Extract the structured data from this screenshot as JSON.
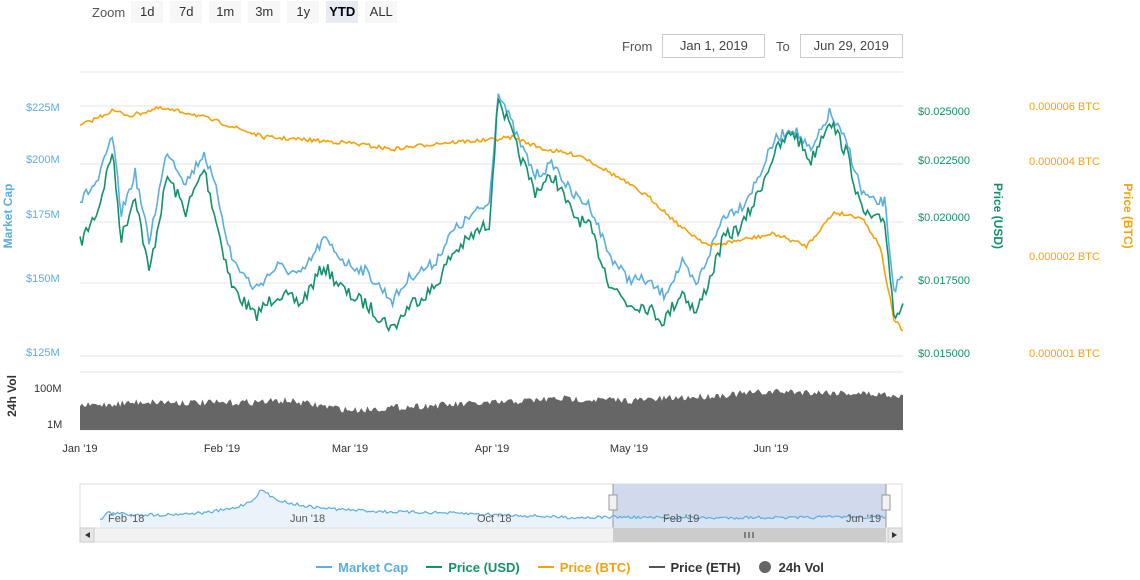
{
  "zoom": {
    "label": "Zoom",
    "buttons": [
      "1d",
      "7d",
      "1m",
      "3m",
      "1y",
      "YTD",
      "ALL"
    ],
    "active": "YTD"
  },
  "range": {
    "from_label": "From",
    "from_value": "Jan 1, 2019",
    "to_label": "To",
    "to_value": "Jun 29, 2019"
  },
  "colors": {
    "market_cap": "#5aaee0",
    "price_usd": "#11926c",
    "price_btc": "#f5a20a",
    "price_eth": "#555555",
    "volume": "#666666",
    "navigator_fill": "#c5d0e8"
  },
  "chart_data": {
    "type": "line",
    "x_range": [
      "2019-01-01",
      "2019-06-29"
    ],
    "x_ticks": [
      "Jan '19",
      "Feb '19",
      "Mar '19",
      "Apr '19",
      "May '19",
      "Jun '19"
    ],
    "axes": {
      "market_cap": {
        "label": "Market Cap",
        "ticks": [
          "$225M",
          "$200M",
          "$175M",
          "$150M",
          "$125M"
        ],
        "range": [
          125,
          225
        ],
        "unit": "$M"
      },
      "price_usd": {
        "label": "Price (USD)",
        "ticks": [
          "$0.025000",
          "$0.022500",
          "$0.020000",
          "$0.017500",
          "$0.015000"
        ],
        "range": [
          0.015,
          0.025
        ]
      },
      "price_btc": {
        "label": "Price (BTC)",
        "ticks": [
          "0.000006 BTC",
          "0.000004 BTC",
          "0.000002 BTC",
          "0.000001 BTC"
        ],
        "values": [
          6e-06,
          4e-06,
          2e-06,
          1e-06
        ],
        "scale": "log"
      },
      "volume": {
        "label": "24h Vol",
        "ticks": [
          "100M",
          "1M"
        ],
        "scale": "log"
      }
    },
    "series": [
      {
        "name": "Price (USD)",
        "x": [
          "2019-01-01",
          "2019-01-05",
          "2019-01-08",
          "2019-01-10",
          "2019-01-13",
          "2019-01-16",
          "2019-01-20",
          "2019-01-24",
          "2019-01-28",
          "2019-01-31",
          "2019-02-03",
          "2019-02-08",
          "2019-02-13",
          "2019-02-18",
          "2019-02-23",
          "2019-02-28",
          "2019-03-04",
          "2019-03-10",
          "2019-03-14",
          "2019-03-19",
          "2019-03-23",
          "2019-03-28",
          "2019-03-31",
          "2019-04-02",
          "2019-04-06",
          "2019-04-10",
          "2019-04-14",
          "2019-04-18",
          "2019-04-22",
          "2019-04-26",
          "2019-04-30",
          "2019-05-04",
          "2019-05-08",
          "2019-05-12",
          "2019-05-15",
          "2019-05-18",
          "2019-05-21",
          "2019-05-25",
          "2019-05-28",
          "2019-06-01",
          "2019-06-05",
          "2019-06-09",
          "2019-06-13",
          "2019-06-17",
          "2019-06-20",
          "2019-06-23",
          "2019-06-25",
          "2019-06-27",
          "2019-06-29"
        ],
        "values": [
          0.0195,
          0.0209,
          0.0232,
          0.0197,
          0.0215,
          0.0183,
          0.0222,
          0.0208,
          0.0225,
          0.0201,
          0.0178,
          0.0166,
          0.0175,
          0.0171,
          0.0186,
          0.0175,
          0.0171,
          0.0161,
          0.0171,
          0.0177,
          0.0191,
          0.0199,
          0.0203,
          0.0254,
          0.0233,
          0.0216,
          0.0222,
          0.0207,
          0.0201,
          0.018,
          0.0171,
          0.017,
          0.0164,
          0.0176,
          0.0167,
          0.0181,
          0.0197,
          0.0202,
          0.0213,
          0.0231,
          0.024,
          0.0228,
          0.0245,
          0.023,
          0.0208,
          0.0204,
          0.0205,
          0.0167,
          0.0171
        ]
      },
      {
        "name": "Market Cap",
        "x": [
          "2019-01-01",
          "2019-01-05",
          "2019-01-08",
          "2019-01-10",
          "2019-01-13",
          "2019-01-16",
          "2019-01-20",
          "2019-01-24",
          "2019-01-28",
          "2019-01-31",
          "2019-02-03",
          "2019-02-08",
          "2019-02-13",
          "2019-02-18",
          "2019-02-23",
          "2019-02-28",
          "2019-03-04",
          "2019-03-10",
          "2019-03-14",
          "2019-03-19",
          "2019-03-23",
          "2019-03-28",
          "2019-03-31",
          "2019-04-02",
          "2019-04-06",
          "2019-04-10",
          "2019-04-14",
          "2019-04-18",
          "2019-04-22",
          "2019-04-26",
          "2019-04-30",
          "2019-05-04",
          "2019-05-08",
          "2019-05-12",
          "2019-05-15",
          "2019-05-18",
          "2019-05-21",
          "2019-05-25",
          "2019-05-28",
          "2019-06-01",
          "2019-06-05",
          "2019-06-09",
          "2019-06-13",
          "2019-06-17",
          "2019-06-20",
          "2019-06-23",
          "2019-06-25",
          "2019-06-27",
          "2019-06-29"
        ],
        "values": [
          184,
          193,
          212,
          179,
          196,
          167,
          206,
          192,
          205,
          186,
          160,
          148,
          157,
          153,
          168,
          158,
          155,
          144,
          153,
          158,
          171,
          179,
          183,
          232,
          212,
          195,
          200,
          187,
          182,
          162,
          152,
          151,
          146,
          158,
          149,
          163,
          178,
          182,
          192,
          210,
          216,
          205,
          222,
          208,
          188,
          183,
          184,
          148,
          152
        ]
      },
      {
        "name": "Price (BTC)",
        "x": [
          "2019-01-01",
          "2019-01-08",
          "2019-01-12",
          "2019-01-18",
          "2019-01-25",
          "2019-02-01",
          "2019-02-10",
          "2019-02-20",
          "2019-03-01",
          "2019-03-10",
          "2019-03-20",
          "2019-03-31",
          "2019-04-05",
          "2019-04-12",
          "2019-04-20",
          "2019-04-28",
          "2019-05-05",
          "2019-05-12",
          "2019-05-18",
          "2019-05-25",
          "2019-06-01",
          "2019-06-08",
          "2019-06-14",
          "2019-06-20",
          "2019-06-24",
          "2019-06-27",
          "2019-06-29"
        ],
        "values": [
          5.2e-06,
          5.8e-06,
          5.6e-06,
          5.9e-06,
          5.7e-06,
          5.3e-06,
          4.8e-06,
          4.7e-06,
          4.6e-06,
          4.4e-06,
          4.6e-06,
          4.7e-06,
          4.8e-06,
          4.4e-06,
          4.2e-06,
          3.6e-06,
          3.1e-06,
          2.5e-06,
          2.2e-06,
          2.3e-06,
          2.4e-06,
          2.2e-06,
          2.8e-06,
          2.7e-06,
          2.2e-06,
          1.3e-06,
          1.2e-06
        ]
      },
      {
        "name": "24h Vol",
        "x": [
          "2019-01-01",
          "2019-01-15",
          "2019-02-01",
          "2019-02-15",
          "2019-03-01",
          "2019-03-15",
          "2019-04-01",
          "2019-04-15",
          "2019-05-01",
          "2019-05-15",
          "2019-06-01",
          "2019-06-15",
          "2019-06-29"
        ],
        "values": [
          6,
          9,
          8,
          10,
          4,
          6,
          8,
          12,
          10,
          14,
          22,
          20,
          16
        ]
      },
      {
        "name": "Price (ETH)",
        "x": [],
        "values": []
      }
    ],
    "navigator": {
      "ticks": [
        "Feb '18",
        "Jun '18",
        "Oct '18",
        "Feb '19",
        "Jun '19"
      ],
      "x_range": [
        "2018-01-20",
        "2019-06-29"
      ],
      "selected": [
        "2019-01-01",
        "2019-06-29"
      ],
      "x": [
        "2018-01-20",
        "2018-01-25",
        "2018-02-10",
        "2018-03-01",
        "2018-04-01",
        "2018-04-20",
        "2018-05-01",
        "2018-05-08",
        "2018-05-15",
        "2018-05-25",
        "2018-06-10",
        "2018-07-01",
        "2018-08-01",
        "2018-09-01",
        "2018-10-01",
        "2018-11-01",
        "2018-12-01",
        "2019-01-01",
        "2019-02-01",
        "2019-03-01",
        "2019-04-01",
        "2019-05-01",
        "2019-06-01",
        "2019-06-29"
      ],
      "values": [
        100,
        300,
        250,
        240,
        300,
        420,
        600,
        900,
        700,
        560,
        450,
        380,
        320,
        300,
        260,
        220,
        170,
        185,
        160,
        155,
        175,
        160,
        195,
        165
      ]
    },
    "legend": [
      "Market Cap",
      "Price (USD)",
      "Price (BTC)",
      "Price (ETH)",
      "24h Vol"
    ],
    "legend_position": "bottom-center"
  }
}
